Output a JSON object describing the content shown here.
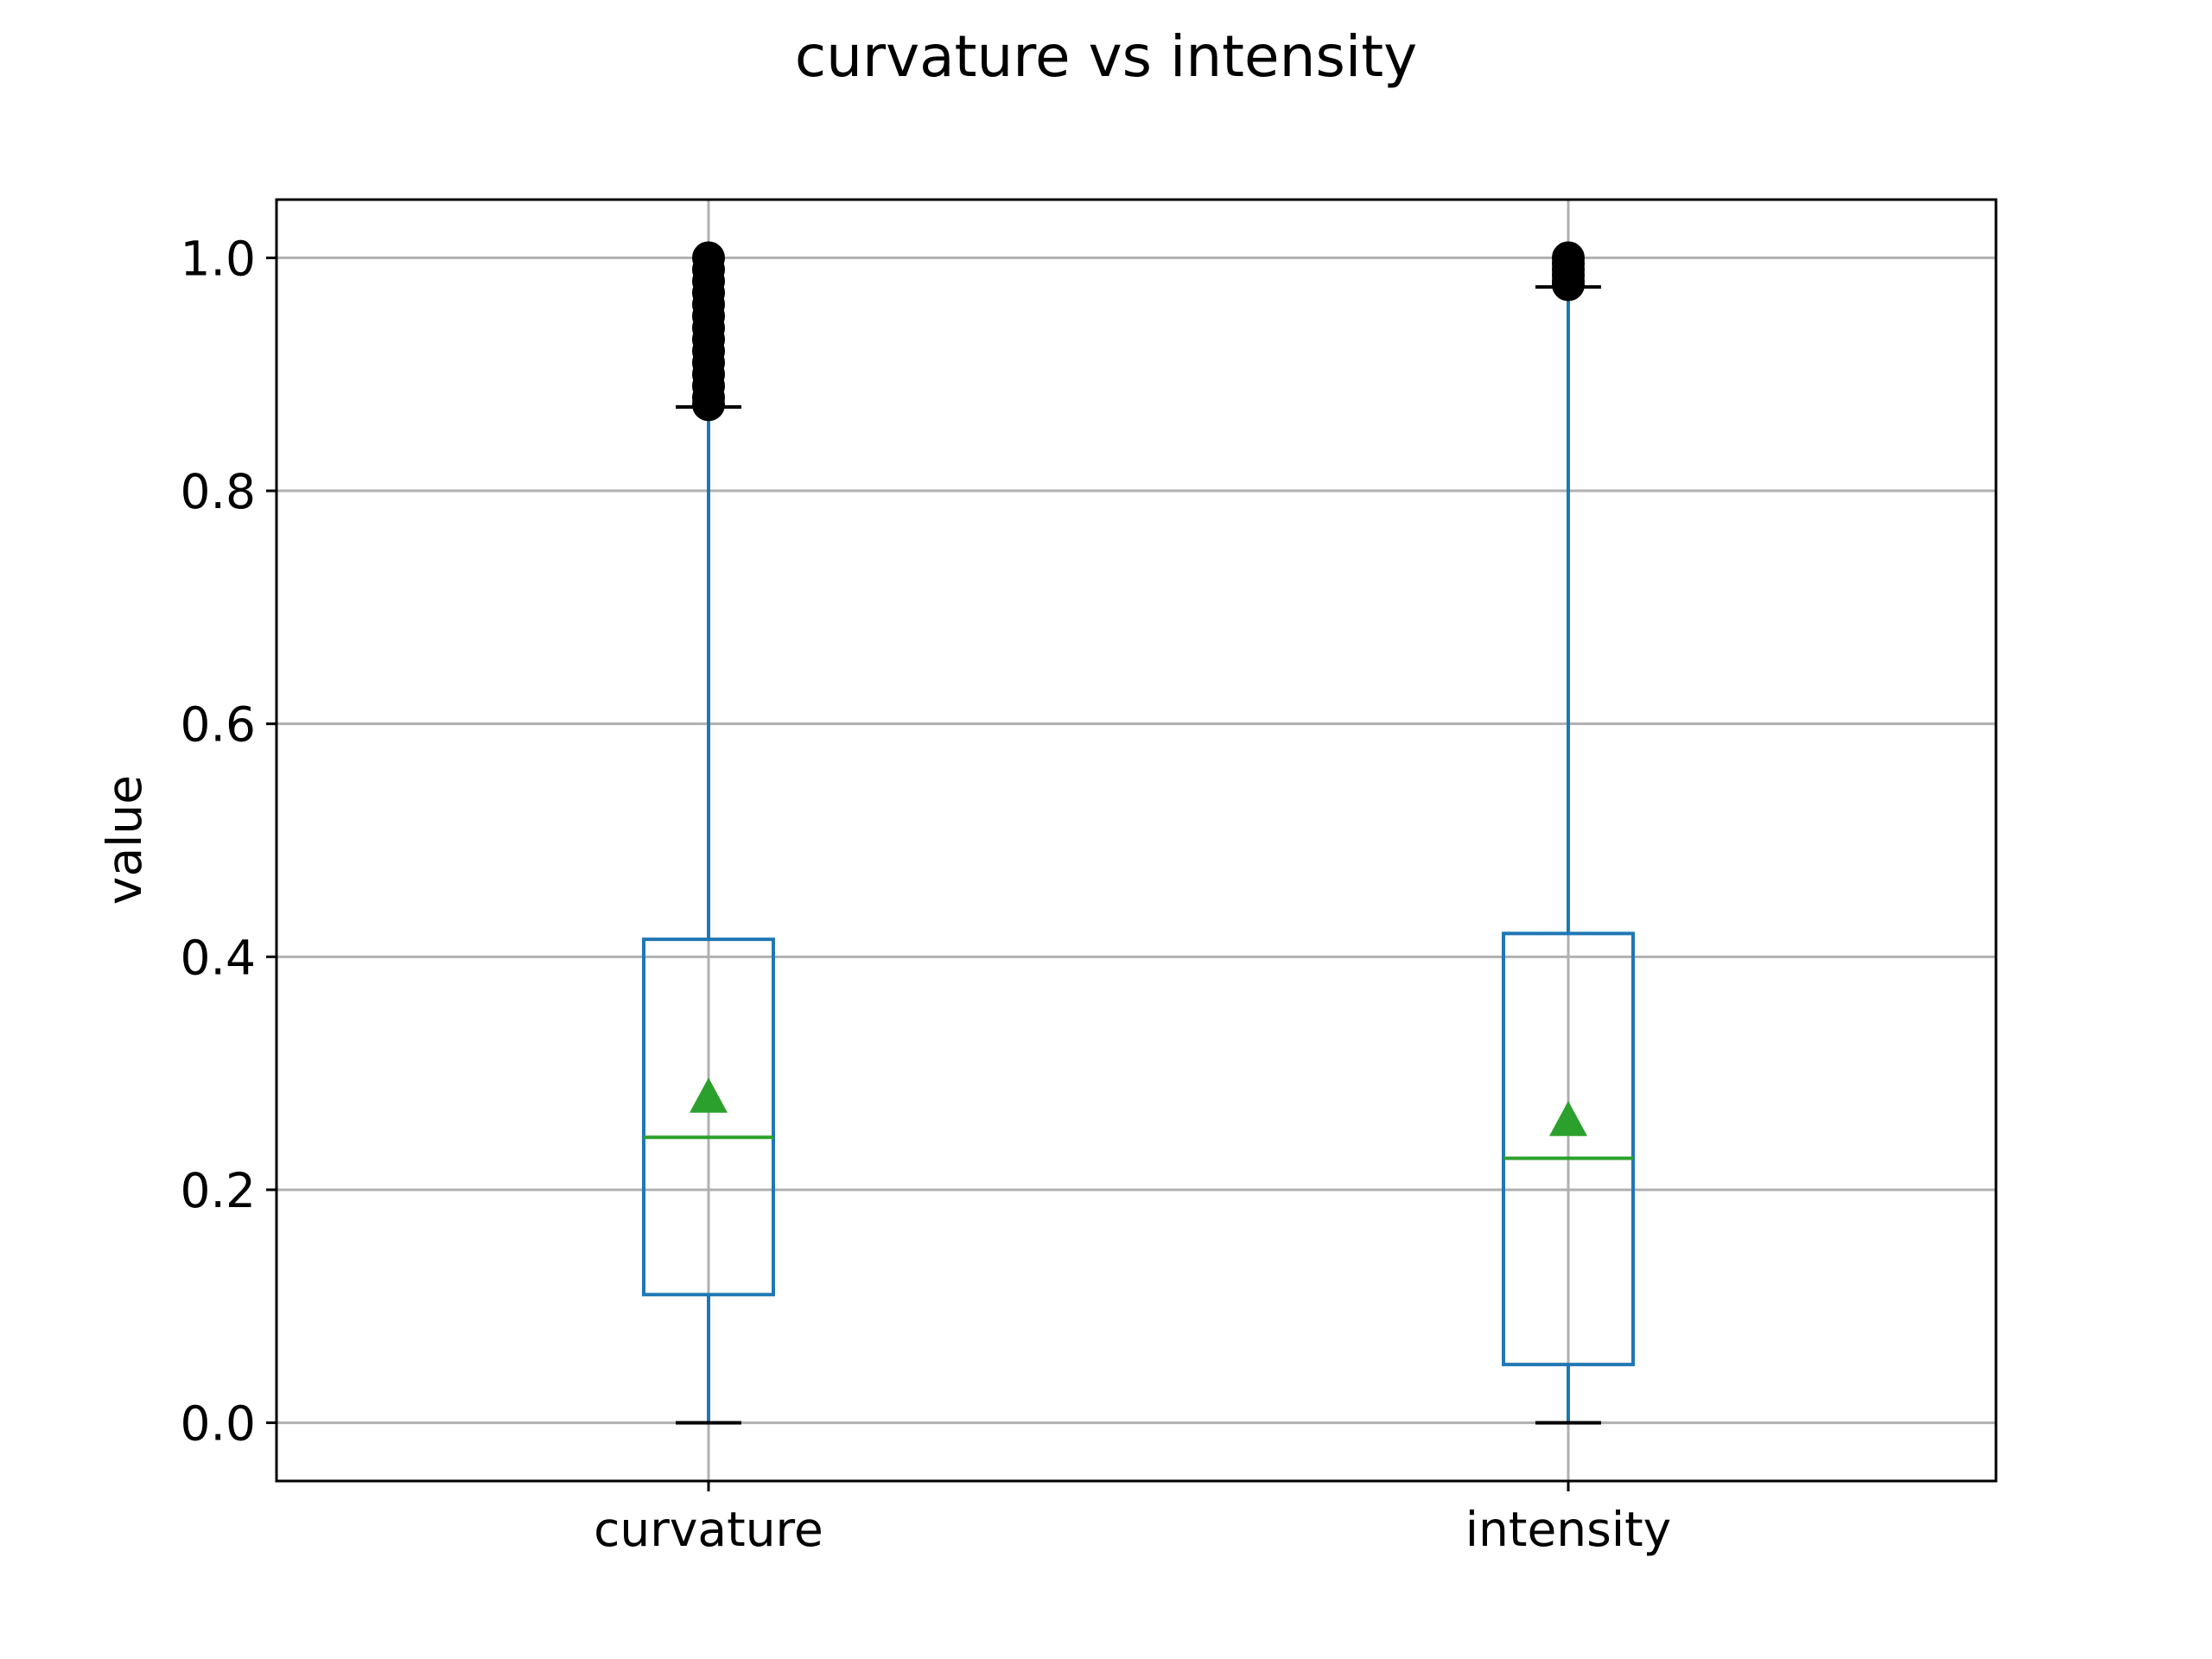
{
  "chart_data": {
    "type": "box",
    "title": "curvature vs intensity",
    "xlabel": "",
    "ylabel": "value",
    "categories": [
      "curvature",
      "intensity"
    ],
    "ylim": [
      -0.05,
      1.05
    ],
    "yticks": [
      0.0,
      0.2,
      0.4,
      0.6,
      0.8,
      1.0
    ],
    "ytick_labels": [
      "0.0",
      "0.2",
      "0.4",
      "0.6",
      "0.8",
      "1.0"
    ],
    "grid": true,
    "show_means": true,
    "boxes": [
      {
        "name": "curvature",
        "whisker_low": 0.0,
        "q1": 0.11,
        "median": 0.245,
        "q3": 0.415,
        "whisker_high": 0.872,
        "mean": 0.28,
        "outliers": [
          0.874,
          0.88,
          0.89,
          0.9,
          0.91,
          0.92,
          0.93,
          0.94,
          0.95,
          0.96,
          0.97,
          0.98,
          0.99,
          1.0
        ]
      },
      {
        "name": "intensity",
        "whisker_low": 0.0,
        "q1": 0.05,
        "median": 0.227,
        "q3": 0.42,
        "whisker_high": 0.975,
        "mean": 0.26,
        "outliers": [
          0.977,
          0.98,
          0.985,
          0.99,
          0.995,
          1.0
        ]
      }
    ],
    "colors": {
      "box": "#1f77b4",
      "median": "#2ca02c",
      "mean": "#2ca02c",
      "cap": "#000000",
      "outlier": "#000000",
      "grid": "#b0b0b0",
      "axes": "#000000"
    }
  }
}
